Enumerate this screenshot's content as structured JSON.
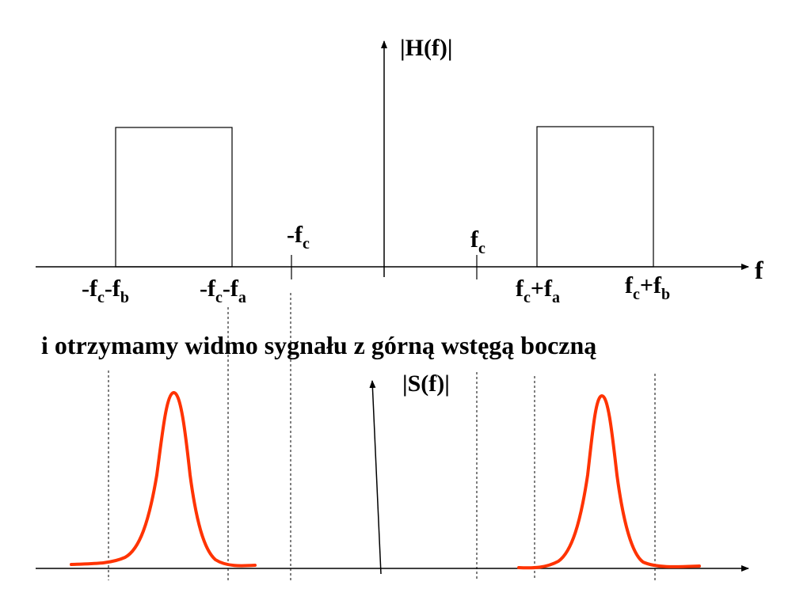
{
  "top": {
    "axis_title": "|H(f)|",
    "freq_symbol": "f",
    "labels": {
      "neg_fc": {
        "pre": "-f",
        "sub": "c"
      },
      "pos_fc": {
        "pre": "f",
        "sub": "c"
      },
      "neg_fc_fb": {
        "a": "-f",
        "a_sub": "c",
        "b": "-f",
        "b_sub": "b"
      },
      "neg_fc_fa": {
        "a": "-f",
        "a_sub": "c",
        "b": "-f",
        "b_sub": "a"
      },
      "pos_fc_fa": {
        "a": "f",
        "a_sub": "c",
        "b": "+f",
        "b_sub": "a"
      },
      "pos_fc_fb": {
        "a": "f",
        "a_sub": "c",
        "b": "+f",
        "b_sub": "b"
      }
    }
  },
  "caption": "i otrzymamy widmo sygnału z górną wstęgą boczną",
  "bottom": {
    "axis_title": "|S(f)|"
  },
  "colors": {
    "ink": "#000000",
    "spectrum": "#ff3300"
  }
}
